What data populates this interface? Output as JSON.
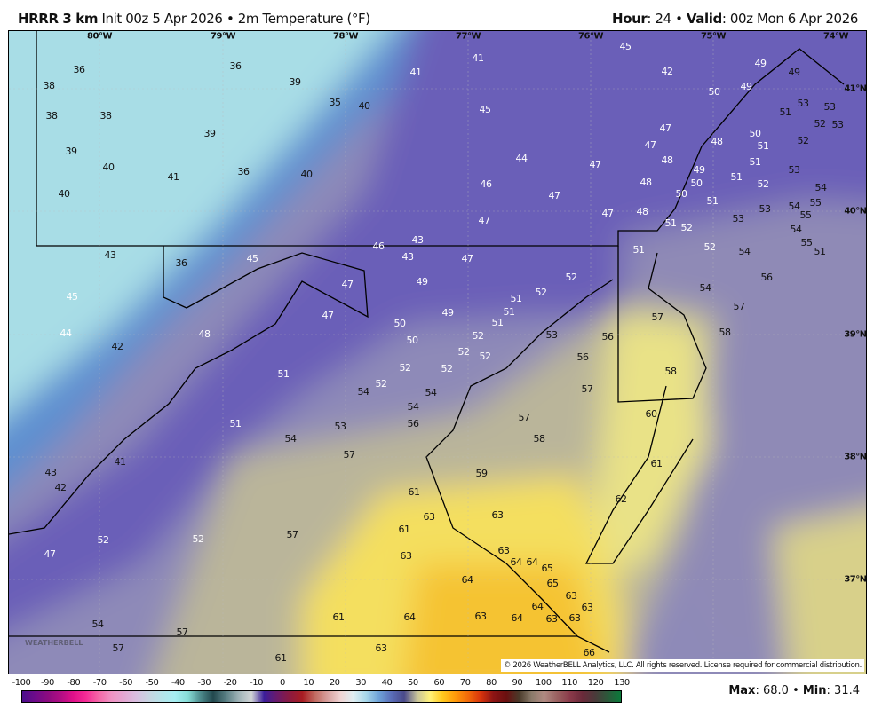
{
  "header": {
    "model": "HRRR 3 km",
    "init": "Init 00z 5 Apr 2026",
    "sep": "•",
    "field": "2m Temperature (°F)",
    "hour_label": "Hour",
    "hour": ": 24",
    "valid_label": "Valid",
    "valid": ": 00z Mon 6 Apr 2026"
  },
  "lon_labels": [
    "80°W",
    "79°W",
    "78°W",
    "77°W",
    "76°W",
    "75°W",
    "74°W"
  ],
  "lat_labels": [
    "41°N",
    "40°N",
    "39°N",
    "38°N",
    "37°N"
  ],
  "temperature_labels": [
    36,
    38,
    38,
    38,
    39,
    40,
    40,
    41,
    36,
    39,
    35,
    40,
    41,
    41,
    45,
    42,
    39,
    36,
    40,
    45,
    44,
    46,
    47,
    47,
    47,
    47,
    48,
    48,
    47,
    47,
    48,
    48,
    49,
    50,
    50,
    51,
    51,
    52,
    50,
    49,
    49,
    49,
    51,
    50,
    51,
    51,
    51,
    52,
    53,
    53,
    53,
    52,
    52,
    53,
    54,
    55,
    53,
    54,
    55,
    54,
    55,
    51,
    53,
    52,
    54,
    51,
    54,
    56,
    57,
    58,
    57,
    56,
    56,
    57,
    58,
    60,
    61,
    62,
    52,
    52,
    51,
    51,
    51,
    52,
    52,
    52,
    53,
    49,
    49,
    47,
    46,
    43,
    43,
    45,
    47,
    47,
    48,
    50,
    50,
    52,
    52,
    52,
    54,
    54,
    54,
    56,
    53,
    54,
    51,
    51,
    57,
    59,
    57,
    58,
    61,
    63,
    63,
    61,
    63,
    63,
    64,
    64,
    65,
    64,
    65,
    63,
    63,
    64,
    63,
    63,
    64,
    63,
    64,
    61,
    63,
    66,
    61,
    57,
    57,
    54,
    52,
    57,
    52,
    47,
    43,
    42,
    41,
    42,
    44,
    45,
    43,
    36
  ],
  "copyright": "© 2026 WeatherBELL Analytics, LLC. All rights reserved. License required for commercial distribution.",
  "logo": "WEATHERBELL",
  "colorbar": {
    "ticks": [
      "-100",
      "-90",
      "-80",
      "-70",
      "-60",
      "-50",
      "-40",
      "-30",
      "-20",
      "-10",
      "0",
      "10",
      "20",
      "30",
      "40",
      "50",
      "60",
      "70",
      "80",
      "90",
      "100",
      "110",
      "120",
      "130"
    ],
    "units": "°F"
  },
  "stats": {
    "max_label": "Max",
    "max": ": 68.0",
    "sep": "•",
    "min_label": "Min",
    "min": ": 31.4"
  },
  "colors": {
    "cold": "#a8dde6",
    "cool": "#5d8fd0",
    "mild": "#6a5fb8",
    "warm": "#bab59a",
    "hot": "#f4df5e",
    "hottest": "#f5b82a"
  }
}
